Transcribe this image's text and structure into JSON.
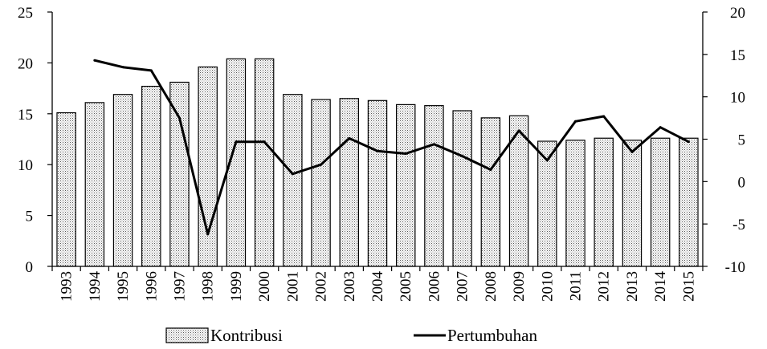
{
  "chart_data": {
    "type": "bar",
    "categories": [
      "1993",
      "1994",
      "1995",
      "1996",
      "1997",
      "1998",
      "1999",
      "2000",
      "2001",
      "2002",
      "2003",
      "2004",
      "2005",
      "2006",
      "2007",
      "2008",
      "2009",
      "2010",
      "2011",
      "2012",
      "2013",
      "2014",
      "2015"
    ],
    "series": [
      {
        "name": "Kontribusi",
        "type": "bar",
        "axis": "left",
        "values": [
          15.1,
          16.1,
          16.9,
          17.7,
          18.1,
          19.6,
          20.4,
          20.4,
          16.9,
          16.4,
          16.5,
          16.3,
          15.9,
          15.8,
          15.3,
          14.6,
          14.8,
          12.3,
          12.4,
          12.6,
          12.4,
          12.6,
          12.6
        ],
        "color": "#ffffff",
        "pattern": "dotted"
      },
      {
        "name": "Pertumbuhan",
        "type": "line",
        "axis": "right",
        "values": [
          null,
          14.3,
          13.5,
          13.1,
          7.5,
          -6.2,
          4.7,
          4.7,
          0.9,
          2.0,
          5.1,
          3.6,
          3.3,
          4.4,
          3.0,
          1.4,
          6.0,
          2.5,
          7.1,
          7.7,
          3.5,
          6.4,
          4.7
        ],
        "color": "#000000"
      }
    ],
    "ylim": [
      0,
      25
    ],
    "y_ticks": [
      0,
      5,
      10,
      15,
      20,
      25
    ],
    "y2lim": [
      -10,
      20
    ],
    "y2_ticks": [
      -10,
      -5,
      0,
      5,
      10,
      15,
      20
    ],
    "grid": false,
    "legend_position": "bottom",
    "title": "",
    "xlabel": "",
    "ylabel": ""
  }
}
